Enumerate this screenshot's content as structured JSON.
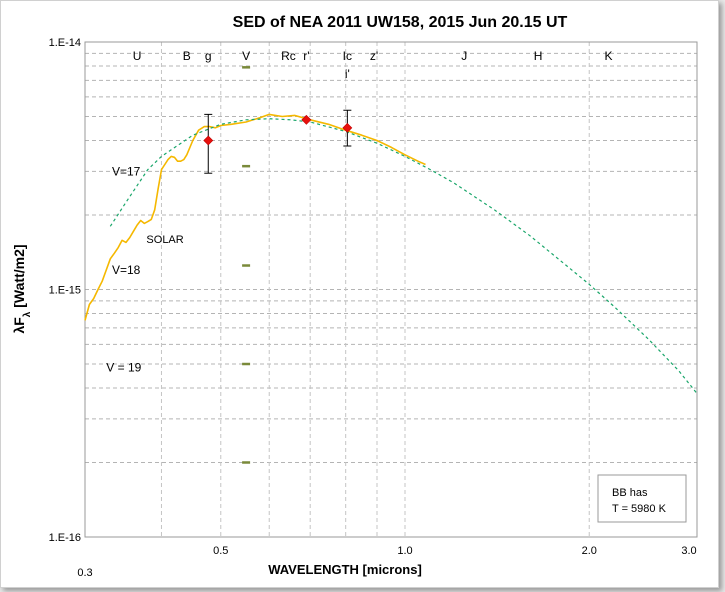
{
  "chart_data": {
    "type": "line",
    "title": "SED of NEA 2011 UW158, 2015 Jun 20.15 UT",
    "xlabel": "WAVELENGTH [microns]",
    "ylabel": "λFλ [Watt/m2]",
    "xscale": "log",
    "yscale": "log",
    "xlim": [
      0.3,
      3.0
    ],
    "ylim": [
      1e-16,
      1e-14
    ],
    "x_ticks": [
      {
        "value": 0.3,
        "label": "0.3"
      },
      {
        "value": 0.5,
        "label": "0.5"
      },
      {
        "value": 1.0,
        "label": "1.0"
      },
      {
        "value": 2.0,
        "label": "2.0"
      },
      {
        "value": 3.0,
        "label": "3.0"
      }
    ],
    "y_ticks": [
      {
        "value": 1e-16,
        "label": "1.E-16"
      },
      {
        "value": 1e-15,
        "label": "1.E-15"
      },
      {
        "value": 1e-14,
        "label": "1.E-14"
      }
    ],
    "grid": true,
    "bands": [
      {
        "label": "U",
        "x": 0.365,
        "row": 1
      },
      {
        "label": "B",
        "x": 0.44,
        "row": 1
      },
      {
        "label": "g",
        "x": 0.477,
        "row": 1
      },
      {
        "label": "V",
        "x": 0.55,
        "row": 1
      },
      {
        "label": "Rc",
        "x": 0.645,
        "row": 1
      },
      {
        "label": "r'",
        "x": 0.69,
        "row": 1
      },
      {
        "label": "Ic",
        "x": 0.805,
        "row": 1
      },
      {
        "label": "i'",
        "x": 0.805,
        "row": 2
      },
      {
        "label": "z'",
        "x": 0.89,
        "row": 1
      },
      {
        "label": "J",
        "x": 1.25,
        "row": 1
      },
      {
        "label": "H",
        "x": 1.65,
        "row": 1
      },
      {
        "label": "K",
        "x": 2.15,
        "row": 1
      }
    ],
    "series": [
      {
        "name": "SOLAR",
        "color": "#f5b800",
        "x": [
          0.3,
          0.305,
          0.31,
          0.315,
          0.32,
          0.325,
          0.33,
          0.335,
          0.34,
          0.345,
          0.35,
          0.355,
          0.36,
          0.365,
          0.37,
          0.375,
          0.38,
          0.385,
          0.39,
          0.395,
          0.4,
          0.405,
          0.41,
          0.415,
          0.42,
          0.425,
          0.43,
          0.435,
          0.44,
          0.45,
          0.46,
          0.47,
          0.48,
          0.49,
          0.5,
          0.52,
          0.55,
          0.58,
          0.6,
          0.63,
          0.66,
          0.7,
          0.75,
          0.8,
          0.85,
          0.9,
          0.95,
          1.0,
          1.05,
          1.08
        ],
        "y": [
          7.5e-16,
          8.7e-16,
          9.2e-16,
          1e-15,
          1.08e-15,
          1.2e-15,
          1.33e-15,
          1.4e-15,
          1.48e-15,
          1.58e-15,
          1.55e-15,
          1.62e-15,
          1.72e-15,
          1.82e-15,
          1.9e-15,
          1.85e-15,
          1.88e-15,
          1.92e-15,
          2.1e-15,
          2.55e-15,
          3.05e-15,
          3.2e-15,
          3.35e-15,
          3.45e-15,
          3.42e-15,
          3.3e-15,
          3.3e-15,
          3.35e-15,
          3.5e-15,
          4e-15,
          4.4e-15,
          4.55e-15,
          4.55e-15,
          4.5e-15,
          4.6e-15,
          4.65e-15,
          4.75e-15,
          4.95e-15,
          5.1e-15,
          5e-15,
          5.05e-15,
          4.85e-15,
          4.65e-15,
          4.4e-15,
          4.2e-15,
          4e-15,
          3.75e-15,
          3.5e-15,
          3.3e-15,
          3.2e-15
        ]
      },
      {
        "name": "BB",
        "color": "#1aa66a",
        "dashed": true,
        "x": [
          0.33,
          0.35,
          0.38,
          0.4,
          0.45,
          0.5,
          0.55,
          0.6,
          0.65,
          0.7,
          0.8,
          0.9,
          1.0,
          1.1,
          1.2,
          1.4,
          1.6,
          1.8,
          2.0,
          2.2,
          2.5,
          2.8,
          3.0
        ],
        "y": [
          1.8e-15,
          2.25e-15,
          3.05e-15,
          3.45e-15,
          4.2e-15,
          4.65e-15,
          4.85e-15,
          4.9e-15,
          4.85e-15,
          4.75e-15,
          4.35e-15,
          3.9e-15,
          3.45e-15,
          3.05e-15,
          2.7e-15,
          2.1e-15,
          1.65e-15,
          1.3e-15,
          1.05e-15,
          8.5e-16,
          6.3e-16,
          4.7e-16,
          3.8e-16
        ]
      }
    ],
    "points": [
      {
        "x": 0.477,
        "y": 4e-15,
        "yerr_low": 2.95e-15,
        "yerr_high": 5.1e-15
      },
      {
        "x": 0.69,
        "y": 4.85e-15
      },
      {
        "x": 0.805,
        "y": 4.5e-15,
        "yerr_low": 3.8e-15,
        "yerr_high": 5.3e-15
      }
    ],
    "v_marks": {
      "x": 0.55,
      "y": [
        7.9e-15,
        3.15e-15,
        1.25e-15,
        5e-16,
        2e-16
      ],
      "color": "#7a8a3a"
    },
    "annotations": [
      {
        "text": "V=17",
        "x": 0.332,
        "y": 3e-15
      },
      {
        "text": "SOLAR",
        "x": 0.378,
        "y": 1.6e-15
      },
      {
        "text": "V=18",
        "x": 0.332,
        "y": 1.2e-15
      },
      {
        "text": "V = 19",
        "x": 0.325,
        "y": 4.85e-16
      }
    ],
    "legend_box": {
      "position": "bottom-right",
      "lines": [
        "BB has",
        "T = 5980 K"
      ]
    }
  }
}
